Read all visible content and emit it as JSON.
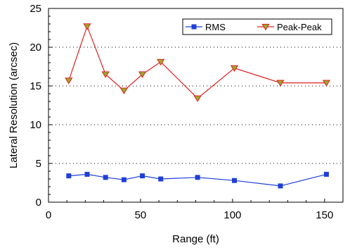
{
  "chart_data": {
    "type": "line",
    "title": "",
    "xlabel": "Range (ft)",
    "ylabel": "Lateral Resolution (arcsec)",
    "xlim": [
      0,
      160
    ],
    "ylim": [
      0,
      25
    ],
    "x_ticks": [
      "0",
      "50",
      "100",
      "150"
    ],
    "y_ticks": [
      "0",
      "5",
      "10",
      "15",
      "20",
      "25"
    ],
    "grid": "horizontal dotted",
    "legend_position": "top-right",
    "series": [
      {
        "name": "RMS",
        "color": "#1f3fd6",
        "marker": "square",
        "x": [
          11,
          21,
          31,
          41,
          51,
          61,
          81,
          101,
          126,
          151
        ],
        "y": [
          3.4,
          3.6,
          3.2,
          2.9,
          3.4,
          3.0,
          3.2,
          2.8,
          2.1,
          3.6
        ]
      },
      {
        "name": "Peak-Peak",
        "color": "#e02020",
        "marker_fill": "#9aaa2a",
        "marker": "triangle-down",
        "x": [
          11,
          21,
          31,
          41,
          51,
          61,
          81,
          101,
          126,
          151
        ],
        "y": [
          15.7,
          22.7,
          16.5,
          14.4,
          16.5,
          18.1,
          13.4,
          17.3,
          15.4,
          15.4
        ]
      }
    ]
  }
}
